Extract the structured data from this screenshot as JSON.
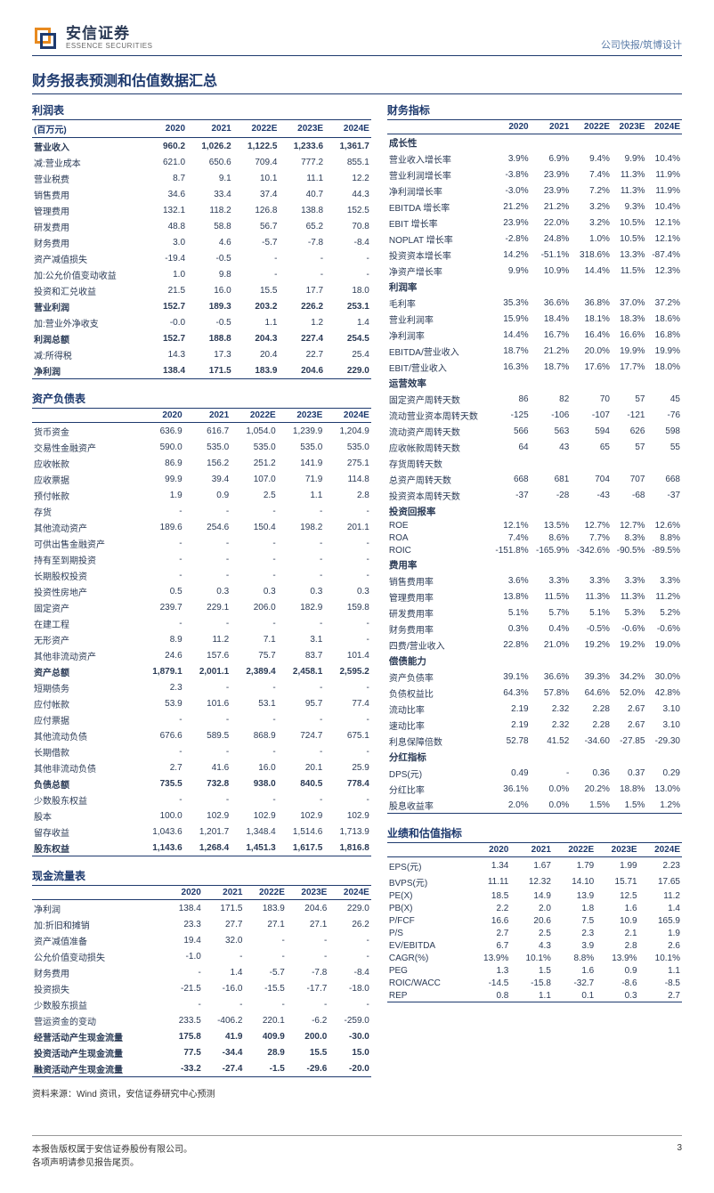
{
  "header": {
    "logo_cn": "安信证券",
    "logo_en": "ESSENCE SECURITIES",
    "right_text": "公司快报/筑博设计"
  },
  "main_title": "财务报表预测和估值数据汇总",
  "income": {
    "title": "利润表",
    "unit_label": "(百万元)",
    "years": [
      "2020",
      "2021",
      "2022E",
      "2023E",
      "2024E"
    ],
    "rows": [
      {
        "label": "营业收入",
        "v": [
          "960.2",
          "1,026.2",
          "1,122.5",
          "1,233.6",
          "1,361.7"
        ],
        "bold": true
      },
      {
        "label": "减:营业成本",
        "v": [
          "621.0",
          "650.6",
          "709.4",
          "777.2",
          "855.1"
        ]
      },
      {
        "label": "营业税费",
        "v": [
          "8.7",
          "9.1",
          "10.1",
          "11.1",
          "12.2"
        ]
      },
      {
        "label": "销售费用",
        "v": [
          "34.6",
          "33.4",
          "37.4",
          "40.7",
          "44.3"
        ]
      },
      {
        "label": "管理费用",
        "v": [
          "132.1",
          "118.2",
          "126.8",
          "138.8",
          "152.5"
        ]
      },
      {
        "label": "研发费用",
        "v": [
          "48.8",
          "58.8",
          "56.7",
          "65.2",
          "70.8"
        ]
      },
      {
        "label": "财务费用",
        "v": [
          "3.0",
          "4.6",
          "-5.7",
          "-7.8",
          "-8.4"
        ]
      },
      {
        "label": "资产减值损失",
        "v": [
          "-19.4",
          "-0.5",
          "-",
          "-",
          "-"
        ]
      },
      {
        "label": "加:公允价值变动收益",
        "v": [
          "1.0",
          "9.8",
          "-",
          "-",
          "-"
        ]
      },
      {
        "label": "投资和汇兑收益",
        "v": [
          "21.5",
          "16.0",
          "15.5",
          "17.7",
          "18.0"
        ]
      },
      {
        "label": "营业利润",
        "v": [
          "152.7",
          "189.3",
          "203.2",
          "226.2",
          "253.1"
        ],
        "bold": true
      },
      {
        "label": "加:营业外净收支",
        "v": [
          "-0.0",
          "-0.5",
          "1.1",
          "1.2",
          "1.4"
        ]
      },
      {
        "label": "利润总额",
        "v": [
          "152.7",
          "188.8",
          "204.3",
          "227.4",
          "254.5"
        ],
        "bold": true
      },
      {
        "label": "减:所得税",
        "v": [
          "14.3",
          "17.3",
          "20.4",
          "22.7",
          "25.4"
        ]
      },
      {
        "label": "净利润",
        "v": [
          "138.4",
          "171.5",
          "183.9",
          "204.6",
          "229.0"
        ],
        "bold": true,
        "underline": true
      }
    ]
  },
  "balance": {
    "title": "资产负债表",
    "years": [
      "2020",
      "2021",
      "2022E",
      "2023E",
      "2024E"
    ],
    "rows": [
      {
        "label": "货币资金",
        "v": [
          "636.9",
          "616.7",
          "1,054.0",
          "1,239.9",
          "1,204.9"
        ]
      },
      {
        "label": "交易性金融资产",
        "v": [
          "590.0",
          "535.0",
          "535.0",
          "535.0",
          "535.0"
        ]
      },
      {
        "label": "应收帐款",
        "v": [
          "86.9",
          "156.2",
          "251.2",
          "141.9",
          "275.1"
        ]
      },
      {
        "label": "应收票据",
        "v": [
          "99.9",
          "39.4",
          "107.0",
          "71.9",
          "114.8"
        ]
      },
      {
        "label": "预付帐款",
        "v": [
          "1.9",
          "0.9",
          "2.5",
          "1.1",
          "2.8"
        ]
      },
      {
        "label": "存货",
        "v": [
          "-",
          "-",
          "-",
          "-",
          "-"
        ]
      },
      {
        "label": "其他流动资产",
        "v": [
          "189.6",
          "254.6",
          "150.4",
          "198.2",
          "201.1"
        ]
      },
      {
        "label": "可供出售金融资产",
        "v": [
          "-",
          "-",
          "-",
          "-",
          "-"
        ]
      },
      {
        "label": "持有至到期投资",
        "v": [
          "-",
          "-",
          "-",
          "-",
          "-"
        ]
      },
      {
        "label": "长期股权投资",
        "v": [
          "-",
          "-",
          "-",
          "-",
          "-"
        ]
      },
      {
        "label": "投资性房地产",
        "v": [
          "0.5",
          "0.3",
          "0.3",
          "0.3",
          "0.3"
        ]
      },
      {
        "label": "固定资产",
        "v": [
          "239.7",
          "229.1",
          "206.0",
          "182.9",
          "159.8"
        ]
      },
      {
        "label": "在建工程",
        "v": [
          "-",
          "-",
          "-",
          "-",
          "-"
        ]
      },
      {
        "label": "无形资产",
        "v": [
          "8.9",
          "11.2",
          "7.1",
          "3.1",
          "-"
        ]
      },
      {
        "label": "其他非流动资产",
        "v": [
          "24.6",
          "157.6",
          "75.7",
          "83.7",
          "101.4"
        ]
      },
      {
        "label": "资产总额",
        "v": [
          "1,879.1",
          "2,001.1",
          "2,389.4",
          "2,458.1",
          "2,595.2"
        ],
        "bold": true
      },
      {
        "label": "短期债务",
        "v": [
          "2.3",
          "-",
          "-",
          "-",
          "-"
        ]
      },
      {
        "label": "应付帐款",
        "v": [
          "53.9",
          "101.6",
          "53.1",
          "95.7",
          "77.4"
        ]
      },
      {
        "label": "应付票据",
        "v": [
          "-",
          "-",
          "-",
          "-",
          "-"
        ]
      },
      {
        "label": "其他流动负债",
        "v": [
          "676.6",
          "589.5",
          "868.9",
          "724.7",
          "675.1"
        ]
      },
      {
        "label": "长期借款",
        "v": [
          "-",
          "-",
          "-",
          "-",
          "-"
        ]
      },
      {
        "label": "其他非流动负债",
        "v": [
          "2.7",
          "41.6",
          "16.0",
          "20.1",
          "25.9"
        ]
      },
      {
        "label": "负债总额",
        "v": [
          "735.5",
          "732.8",
          "938.0",
          "840.5",
          "778.4"
        ],
        "bold": true
      },
      {
        "label": "少数股东权益",
        "v": [
          "-",
          "-",
          "-",
          "-",
          "-"
        ]
      },
      {
        "label": "股本",
        "v": [
          "100.0",
          "102.9",
          "102.9",
          "102.9",
          "102.9"
        ]
      },
      {
        "label": "留存收益",
        "v": [
          "1,043.6",
          "1,201.7",
          "1,348.4",
          "1,514.6",
          "1,713.9"
        ]
      },
      {
        "label": "股东权益",
        "v": [
          "1,143.6",
          "1,268.4",
          "1,451.3",
          "1,617.5",
          "1,816.8"
        ],
        "bold": true,
        "underline": true
      }
    ]
  },
  "cashflow": {
    "title": "现金流量表",
    "years": [
      "2020",
      "2021",
      "2022E",
      "2023E",
      "2024E"
    ],
    "rows": [
      {
        "label": "净利润",
        "v": [
          "138.4",
          "171.5",
          "183.9",
          "204.6",
          "229.0"
        ]
      },
      {
        "label": "加:折旧和摊销",
        "v": [
          "23.3",
          "27.7",
          "27.1",
          "27.1",
          "26.2"
        ]
      },
      {
        "label": "资产减值准备",
        "v": [
          "19.4",
          "32.0",
          "-",
          "-",
          "-"
        ]
      },
      {
        "label": "公允价值变动损失",
        "v": [
          "-1.0",
          "-",
          "-",
          "-",
          "-"
        ]
      },
      {
        "label": "财务费用",
        "v": [
          "-",
          "1.4",
          "-5.7",
          "-7.8",
          "-8.4"
        ]
      },
      {
        "label": "投资损失",
        "v": [
          "-21.5",
          "-16.0",
          "-15.5",
          "-17.7",
          "-18.0"
        ]
      },
      {
        "label": "少数股东损益",
        "v": [
          "-",
          "-",
          "-",
          "-",
          "-"
        ]
      },
      {
        "label": "营运资金的变动",
        "v": [
          "233.5",
          "-406.2",
          "220.1",
          "-6.2",
          "-259.0"
        ]
      },
      {
        "label": "经营活动产生现金流量",
        "v": [
          "175.8",
          "41.9",
          "409.9",
          "200.0",
          "-30.0"
        ],
        "bold": true
      },
      {
        "label": "投资活动产生现金流量",
        "v": [
          "77.5",
          "-34.4",
          "28.9",
          "15.5",
          "15.0"
        ],
        "bold": true
      },
      {
        "label": "融资活动产生现金流量",
        "v": [
          "-33.2",
          "-27.4",
          "-1.5",
          "-29.6",
          "-20.0"
        ],
        "bold": true,
        "underline": true
      }
    ]
  },
  "metrics": {
    "title": "财务指标",
    "years": [
      "2020",
      "2021",
      "2022E",
      "2023E",
      "2024E"
    ],
    "groups": [
      {
        "header": "成长性",
        "rows": [
          {
            "label": "营业收入增长率",
            "v": [
              "3.9%",
              "6.9%",
              "9.4%",
              "9.9%",
              "10.4%"
            ]
          },
          {
            "label": "营业利润增长率",
            "v": [
              "-3.8%",
              "23.9%",
              "7.4%",
              "11.3%",
              "11.9%"
            ]
          },
          {
            "label": "净利润增长率",
            "v": [
              "-3.0%",
              "23.9%",
              "7.2%",
              "11.3%",
              "11.9%"
            ]
          },
          {
            "label": "EBITDA 增长率",
            "v": [
              "21.2%",
              "21.2%",
              "3.2%",
              "9.3%",
              "10.4%"
            ]
          },
          {
            "label": "EBIT 增长率",
            "v": [
              "23.9%",
              "22.0%",
              "3.2%",
              "10.5%",
              "12.1%"
            ]
          },
          {
            "label": "NOPLAT 增长率",
            "v": [
              "-2.8%",
              "24.8%",
              "1.0%",
              "10.5%",
              "12.1%"
            ]
          },
          {
            "label": "投资资本增长率",
            "v": [
              "14.2%",
              "-51.1%",
              "318.6%",
              "13.3%",
              "-87.4%"
            ]
          },
          {
            "label": "净资产增长率",
            "v": [
              "9.9%",
              "10.9%",
              "14.4%",
              "11.5%",
              "12.3%"
            ]
          }
        ]
      },
      {
        "header": "利润率",
        "rows": [
          {
            "label": "毛利率",
            "v": [
              "35.3%",
              "36.6%",
              "36.8%",
              "37.0%",
              "37.2%"
            ]
          },
          {
            "label": "营业利润率",
            "v": [
              "15.9%",
              "18.4%",
              "18.1%",
              "18.3%",
              "18.6%"
            ]
          },
          {
            "label": "净利润率",
            "v": [
              "14.4%",
              "16.7%",
              "16.4%",
              "16.6%",
              "16.8%"
            ]
          },
          {
            "label": "EBITDA/营业收入",
            "v": [
              "18.7%",
              "21.2%",
              "20.0%",
              "19.9%",
              "19.9%"
            ]
          },
          {
            "label": "EBIT/营业收入",
            "v": [
              "16.3%",
              "18.7%",
              "17.6%",
              "17.7%",
              "18.0%"
            ]
          }
        ]
      },
      {
        "header": "运营效率",
        "rows": [
          {
            "label": "固定资产周转天数",
            "v": [
              "86",
              "82",
              "70",
              "57",
              "45"
            ]
          },
          {
            "label": "流动营业资本周转天数",
            "v": [
              "-125",
              "-106",
              "-107",
              "-121",
              "-76"
            ]
          },
          {
            "label": "流动资产周转天数",
            "v": [
              "566",
              "563",
              "594",
              "626",
              "598"
            ]
          },
          {
            "label": "应收帐款周转天数",
            "v": [
              "64",
              "43",
              "65",
              "57",
              "55"
            ]
          },
          {
            "label": "存货周转天数",
            "v": [
              "",
              "",
              "",
              "",
              ""
            ]
          },
          {
            "label": "总资产周转天数",
            "v": [
              "668",
              "681",
              "704",
              "707",
              "668"
            ]
          },
          {
            "label": "投资资本周转天数",
            "v": [
              "-37",
              "-28",
              "-43",
              "-68",
              "-37"
            ]
          }
        ]
      },
      {
        "header": "投资回报率",
        "rows": [
          {
            "label": "ROE",
            "v": [
              "12.1%",
              "13.5%",
              "12.7%",
              "12.7%",
              "12.6%"
            ]
          },
          {
            "label": "ROA",
            "v": [
              "7.4%",
              "8.6%",
              "7.7%",
              "8.3%",
              "8.8%"
            ]
          },
          {
            "label": "ROIC",
            "v": [
              "-151.8%",
              "-165.9%",
              "-342.6%",
              "-90.5%",
              "-89.5%"
            ]
          }
        ]
      },
      {
        "header": "费用率",
        "rows": [
          {
            "label": "销售费用率",
            "v": [
              "3.6%",
              "3.3%",
              "3.3%",
              "3.3%",
              "3.3%"
            ]
          },
          {
            "label": "管理费用率",
            "v": [
              "13.8%",
              "11.5%",
              "11.3%",
              "11.3%",
              "11.2%"
            ]
          },
          {
            "label": "研发费用率",
            "v": [
              "5.1%",
              "5.7%",
              "5.1%",
              "5.3%",
              "5.2%"
            ]
          },
          {
            "label": "财务费用率",
            "v": [
              "0.3%",
              "0.4%",
              "-0.5%",
              "-0.6%",
              "-0.6%"
            ]
          },
          {
            "label": "四费/营业收入",
            "v": [
              "22.8%",
              "21.0%",
              "19.2%",
              "19.2%",
              "19.0%"
            ]
          }
        ]
      },
      {
        "header": "偿债能力",
        "rows": [
          {
            "label": "资产负债率",
            "v": [
              "39.1%",
              "36.6%",
              "39.3%",
              "34.2%",
              "30.0%"
            ]
          },
          {
            "label": "负债权益比",
            "v": [
              "64.3%",
              "57.8%",
              "64.6%",
              "52.0%",
              "42.8%"
            ]
          },
          {
            "label": "流动比率",
            "v": [
              "2.19",
              "2.32",
              "2.28",
              "2.67",
              "3.10"
            ]
          },
          {
            "label": "速动比率",
            "v": [
              "2.19",
              "2.32",
              "2.28",
              "2.67",
              "3.10"
            ]
          },
          {
            "label": "利息保障倍数",
            "v": [
              "52.78",
              "41.52",
              "-34.60",
              "-27.85",
              "-29.30"
            ]
          }
        ]
      },
      {
        "header": "分红指标",
        "rows": [
          {
            "label": "DPS(元)",
            "v": [
              "0.49",
              "-",
              "0.36",
              "0.37",
              "0.29"
            ]
          },
          {
            "label": "分红比率",
            "v": [
              "36.1%",
              "0.0%",
              "20.2%",
              "18.8%",
              "13.0%"
            ]
          },
          {
            "label": "股息收益率",
            "v": [
              "2.0%",
              "0.0%",
              "1.5%",
              "1.5%",
              "1.2%"
            ],
            "underline": true
          }
        ]
      }
    ]
  },
  "valuation": {
    "title": "业绩和估值指标",
    "years": [
      "2020",
      "2021",
      "2022E",
      "2023E",
      "2024E"
    ],
    "rows": [
      {
        "label": "EPS(元)",
        "v": [
          "1.34",
          "1.67",
          "1.79",
          "1.99",
          "2.23"
        ]
      },
      {
        "label": "BVPS(元)",
        "v": [
          "11.11",
          "12.32",
          "14.10",
          "15.71",
          "17.65"
        ]
      },
      {
        "label": "PE(X)",
        "v": [
          "18.5",
          "14.9",
          "13.9",
          "12.5",
          "11.2"
        ]
      },
      {
        "label": "PB(X)",
        "v": [
          "2.2",
          "2.0",
          "1.8",
          "1.6",
          "1.4"
        ]
      },
      {
        "label": "P/FCF",
        "v": [
          "16.6",
          "20.6",
          "7.5",
          "10.9",
          "165.9"
        ]
      },
      {
        "label": "P/S",
        "v": [
          "2.7",
          "2.5",
          "2.3",
          "2.1",
          "1.9"
        ]
      },
      {
        "label": "EV/EBITDA",
        "v": [
          "6.7",
          "4.3",
          "3.9",
          "2.8",
          "2.6"
        ]
      },
      {
        "label": "CAGR(%)",
        "v": [
          "13.9%",
          "10.1%",
          "8.8%",
          "13.9%",
          "10.1%"
        ]
      },
      {
        "label": "PEG",
        "v": [
          "1.3",
          "1.5",
          "1.6",
          "0.9",
          "1.1"
        ]
      },
      {
        "label": "ROIC/WACC",
        "v": [
          "-14.5",
          "-15.8",
          "-32.7",
          "-8.6",
          "-8.5"
        ]
      },
      {
        "label": "REP",
        "v": [
          "0.8",
          "1.1",
          "0.1",
          "0.3",
          "2.7"
        ],
        "underline": true
      }
    ]
  },
  "source": "资料来源：Wind 资讯，安信证券研究中心预测",
  "footer": {
    "line1": "本报告版权属于安信证券股份有限公司。",
    "line2": "各项声明请参见报告尾页。",
    "page": "3"
  }
}
